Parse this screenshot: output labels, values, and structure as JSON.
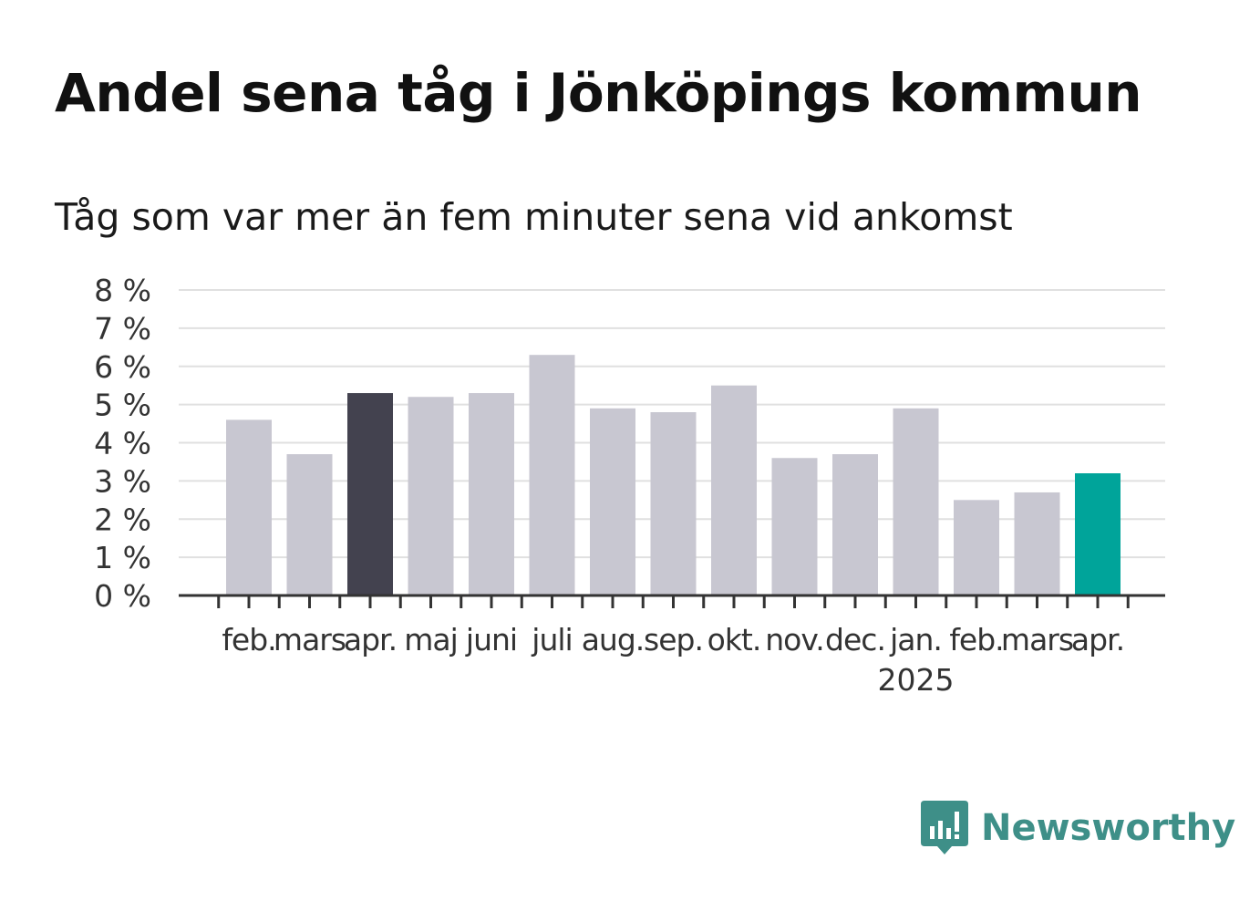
{
  "title": "Andel sena tåg i Jönköpings kommun",
  "subtitle": "Tåg som var mer än fem minuter sena vid ankomst",
  "brand": {
    "name": "Newsworthy",
    "icon": "bar-chart-speech-bubble-icon",
    "color": "#3e8f88"
  },
  "chart_data": {
    "type": "bar",
    "categories": [
      "feb.",
      "mars",
      "apr.",
      "maj",
      "juni",
      "juli",
      "aug.",
      "sep.",
      "okt.",
      "nov.",
      "dec.",
      "jan.",
      "feb.",
      "mars",
      "apr."
    ],
    "year_labels": [
      "",
      "",
      "",
      "",
      "",
      "",
      "",
      "",
      "",
      "",
      "",
      "2025",
      "",
      "",
      ""
    ],
    "values": [
      4.6,
      3.7,
      5.3,
      5.2,
      5.3,
      6.3,
      4.9,
      4.8,
      5.5,
      3.6,
      3.7,
      4.9,
      2.5,
      2.7,
      3.2
    ],
    "bar_colors": [
      "#c8c7d1",
      "#c8c7d1",
      "#43424f",
      "#c8c7d1",
      "#c8c7d1",
      "#c8c7d1",
      "#c8c7d1",
      "#c8c7d1",
      "#c8c7d1",
      "#c8c7d1",
      "#c8c7d1",
      "#c8c7d1",
      "#c8c7d1",
      "#c8c7d1",
      "#00a49a"
    ],
    "yticks": [
      0,
      1,
      2,
      3,
      4,
      5,
      6,
      7,
      8
    ],
    "ytick_labels": [
      "0 %",
      "1 %",
      "2 %",
      "3 %",
      "4 %",
      "5 %",
      "6 %",
      "7 %",
      "8 %"
    ],
    "ylim": [
      0,
      8
    ],
    "grid": true,
    "xlabel": "",
    "ylabel": ""
  }
}
